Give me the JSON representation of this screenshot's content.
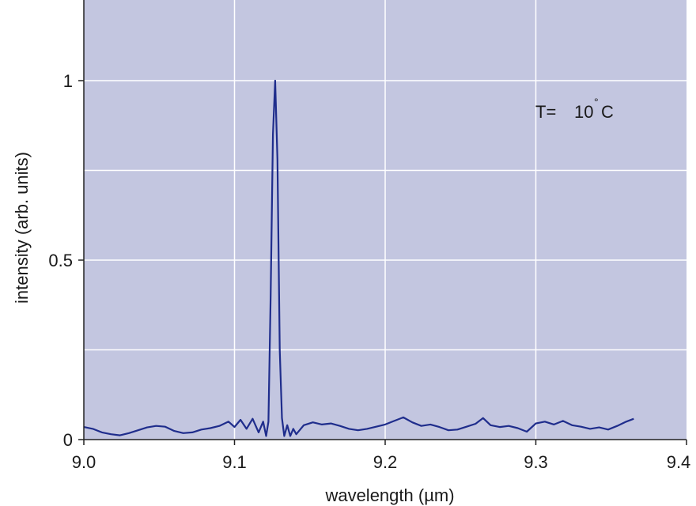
{
  "chart_data": {
    "type": "line",
    "xlabel": "wavelength (µm)",
    "ylabel": "intensity (arb. units)",
    "xlim": [
      9.0,
      9.4
    ],
    "ylim": [
      0,
      1.0
    ],
    "x_ticks": [
      "9.0",
      "9.1",
      "9.2",
      "9.3",
      "9.4"
    ],
    "y_ticks": [
      "0",
      "0.5",
      "1"
    ],
    "grid": true,
    "annotation": {
      "label": "T=",
      "value": "10",
      "degree": "°",
      "unit": "C"
    },
    "colors": {
      "plot_bg": "#c3c6e0",
      "grid": "#ffffff",
      "line": "#1f2d8c",
      "axis": "#222222"
    },
    "series": [
      {
        "x": [
          9.0,
          9.006,
          9.012,
          9.018,
          9.024,
          9.03,
          9.036,
          9.042,
          9.048,
          9.054,
          9.06,
          9.066,
          9.072,
          9.078,
          9.084,
          9.09,
          9.096,
          9.1,
          9.104,
          9.108,
          9.112,
          9.116,
          9.119,
          9.121,
          9.1225,
          9.124,
          9.1255,
          9.127,
          9.1285,
          9.13,
          9.1315,
          9.133,
          9.135,
          9.137,
          9.139,
          9.141,
          9.146,
          9.152,
          9.158,
          9.164,
          9.17,
          9.176,
          9.182,
          9.188,
          9.194,
          9.2,
          9.206,
          9.212,
          9.218,
          9.224,
          9.23,
          9.236,
          9.242,
          9.248,
          9.254,
          9.26,
          9.265,
          9.27,
          9.276,
          9.282,
          9.288,
          9.294,
          9.3,
          9.306,
          9.312,
          9.318,
          9.324,
          9.33,
          9.336,
          9.342,
          9.348,
          9.354,
          9.36,
          9.365
        ],
        "y": [
          0.035,
          0.03,
          0.02,
          0.015,
          0.012,
          0.018,
          0.026,
          0.034,
          0.038,
          0.036,
          0.024,
          0.018,
          0.02,
          0.028,
          0.032,
          0.038,
          0.05,
          0.035,
          0.055,
          0.03,
          0.058,
          0.02,
          0.05,
          0.01,
          0.05,
          0.4,
          0.85,
          1.0,
          0.78,
          0.25,
          0.06,
          0.01,
          0.04,
          0.01,
          0.03,
          0.015,
          0.04,
          0.048,
          0.042,
          0.045,
          0.038,
          0.03,
          0.026,
          0.03,
          0.036,
          0.042,
          0.052,
          0.062,
          0.048,
          0.038,
          0.042,
          0.035,
          0.026,
          0.028,
          0.036,
          0.044,
          0.06,
          0.04,
          0.035,
          0.038,
          0.032,
          0.022,
          0.045,
          0.05,
          0.042,
          0.052,
          0.04,
          0.036,
          0.03,
          0.034,
          0.028,
          0.038,
          0.05,
          0.058
        ]
      }
    ]
  }
}
